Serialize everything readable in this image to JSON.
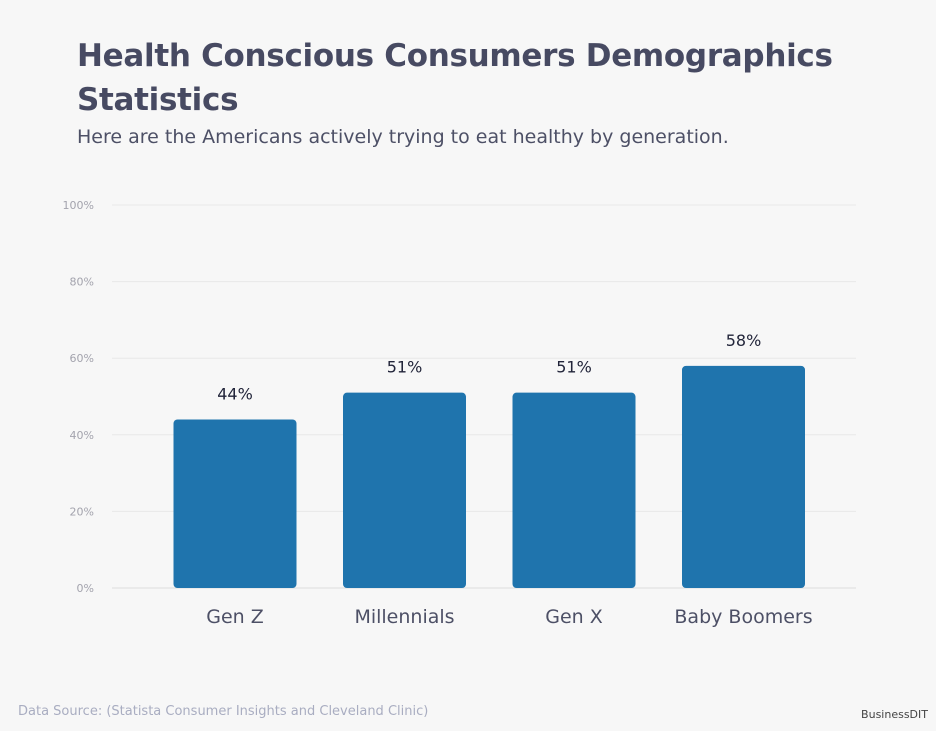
{
  "title": "Health Conscious Consumers Demographics Statistics",
  "subtitle": "Here are the Americans actively trying to eat healthy by generation.",
  "source": "Data Source: (Statista Consumer Insights and Cleveland Clinic)",
  "brand": "BusinessDIT",
  "chart_data": {
    "type": "bar",
    "categories": [
      "Gen Z",
      "Millennials",
      "Gen X",
      "Baby Boomers"
    ],
    "values": [
      44,
      51,
      51,
      58
    ],
    "data_labels": [
      "44%",
      "51%",
      "51%",
      "58%"
    ],
    "ylim": [
      0,
      100
    ],
    "yticks": [
      "0%",
      "20%",
      "40%",
      "60%",
      "80%",
      "100%"
    ],
    "grid": true,
    "bar_color": "#1f74ad"
  }
}
